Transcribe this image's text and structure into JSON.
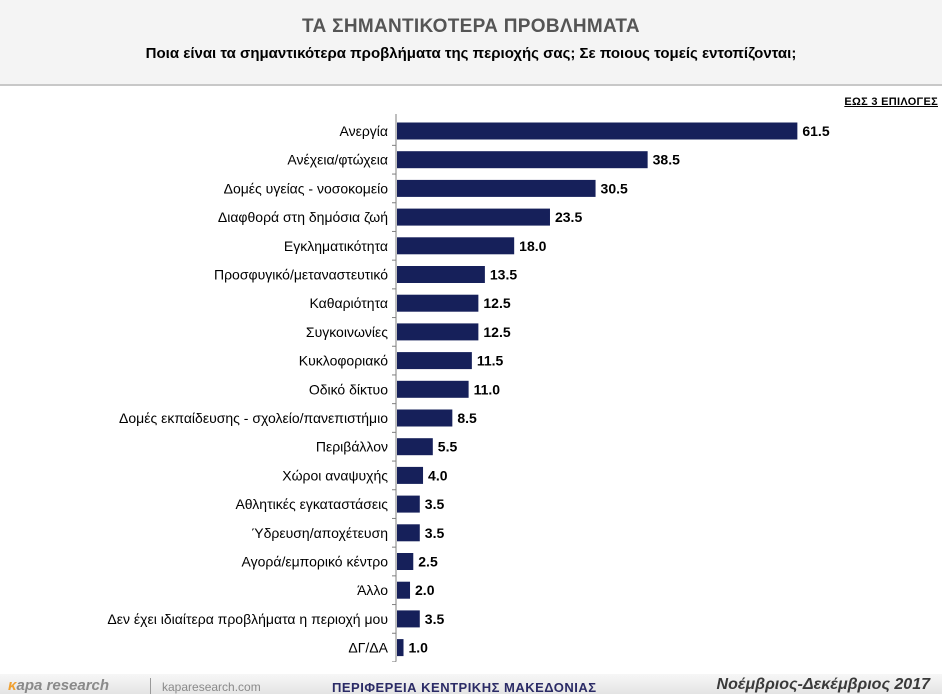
{
  "header": {
    "title": "ΤΑ ΣΗΜΑΝΤΙΚΟΤΕΡΑ ΠΡΟΒΛΗΜΑΤΑ",
    "subtitle": "Ποια είναι τα σημαντικότερα προβλήματα της περιοχής σας; Σε ποιους τομείς εντοπίζονται;"
  },
  "note": "ΕΩΣ 3 ΕΠΙΛΟΓΕΣ",
  "colors": {
    "bar": "#16205a",
    "axis": "#7f7f7f"
  },
  "chart_data": {
    "type": "bar",
    "orientation": "horizontal",
    "title": "ΤΑ ΣΗΜΑΝΤΙΚΟΤΕΡΑ ΠΡΟΒΛΗΜΑΤΑ",
    "xlim": [
      0,
      62
    ],
    "categories": [
      "Ανεργία",
      "Ανέχεια/φτώχεια",
      "Δομές υγείας - νοσοκομείο",
      "Διαφθορά στη δημόσια ζωή",
      "Εγκληματικότητα",
      "Προσφυγικό/μεταναστευτικό",
      "Καθαριότητα",
      "Συγκοινωνίες",
      "Κυκλοφοριακό",
      "Οδικό δίκτυο",
      "Δομές εκπαίδευσης - σχολείο/πανεπιστήμιο",
      "Περιβάλλον",
      "Χώροι αναψυχής",
      "Αθλητικές εγκαταστάσεις",
      "Ύδρευση/αποχέτευση",
      "Αγορά/εμπορικό κέντρο",
      "Άλλο",
      "Δεν έχει ιδιαίτερα προβλήματα η περιοχή μου",
      "ΔΓ/ΔΑ"
    ],
    "values": [
      61.5,
      38.5,
      30.5,
      23.5,
      18.0,
      13.5,
      12.5,
      12.5,
      11.5,
      11.0,
      8.5,
      5.5,
      4.0,
      3.5,
      3.5,
      2.5,
      2.0,
      3.5,
      1.0
    ],
    "value_labels": [
      "61.5",
      "38.5",
      "30.5",
      "23.5",
      "18.0",
      "13.5",
      "12.5",
      "12.5",
      "11.5",
      "11.0",
      "8.5",
      "5.5",
      "4.0",
      "3.5",
      "3.5",
      "2.5",
      "2.0",
      "3.5",
      "1.0"
    ]
  },
  "footer": {
    "logo_mark": "κ",
    "logo_text": "apa research",
    "url": "kaparesearch.com",
    "region": "ΠΕΡΙΦΕΡΕΙΑ ΚΕΝΤΡΙΚΗΣ ΜΑΚΕΔΟΝΙΑΣ",
    "date": "Νοέμβριος-Δεκέμβριος 2017"
  }
}
